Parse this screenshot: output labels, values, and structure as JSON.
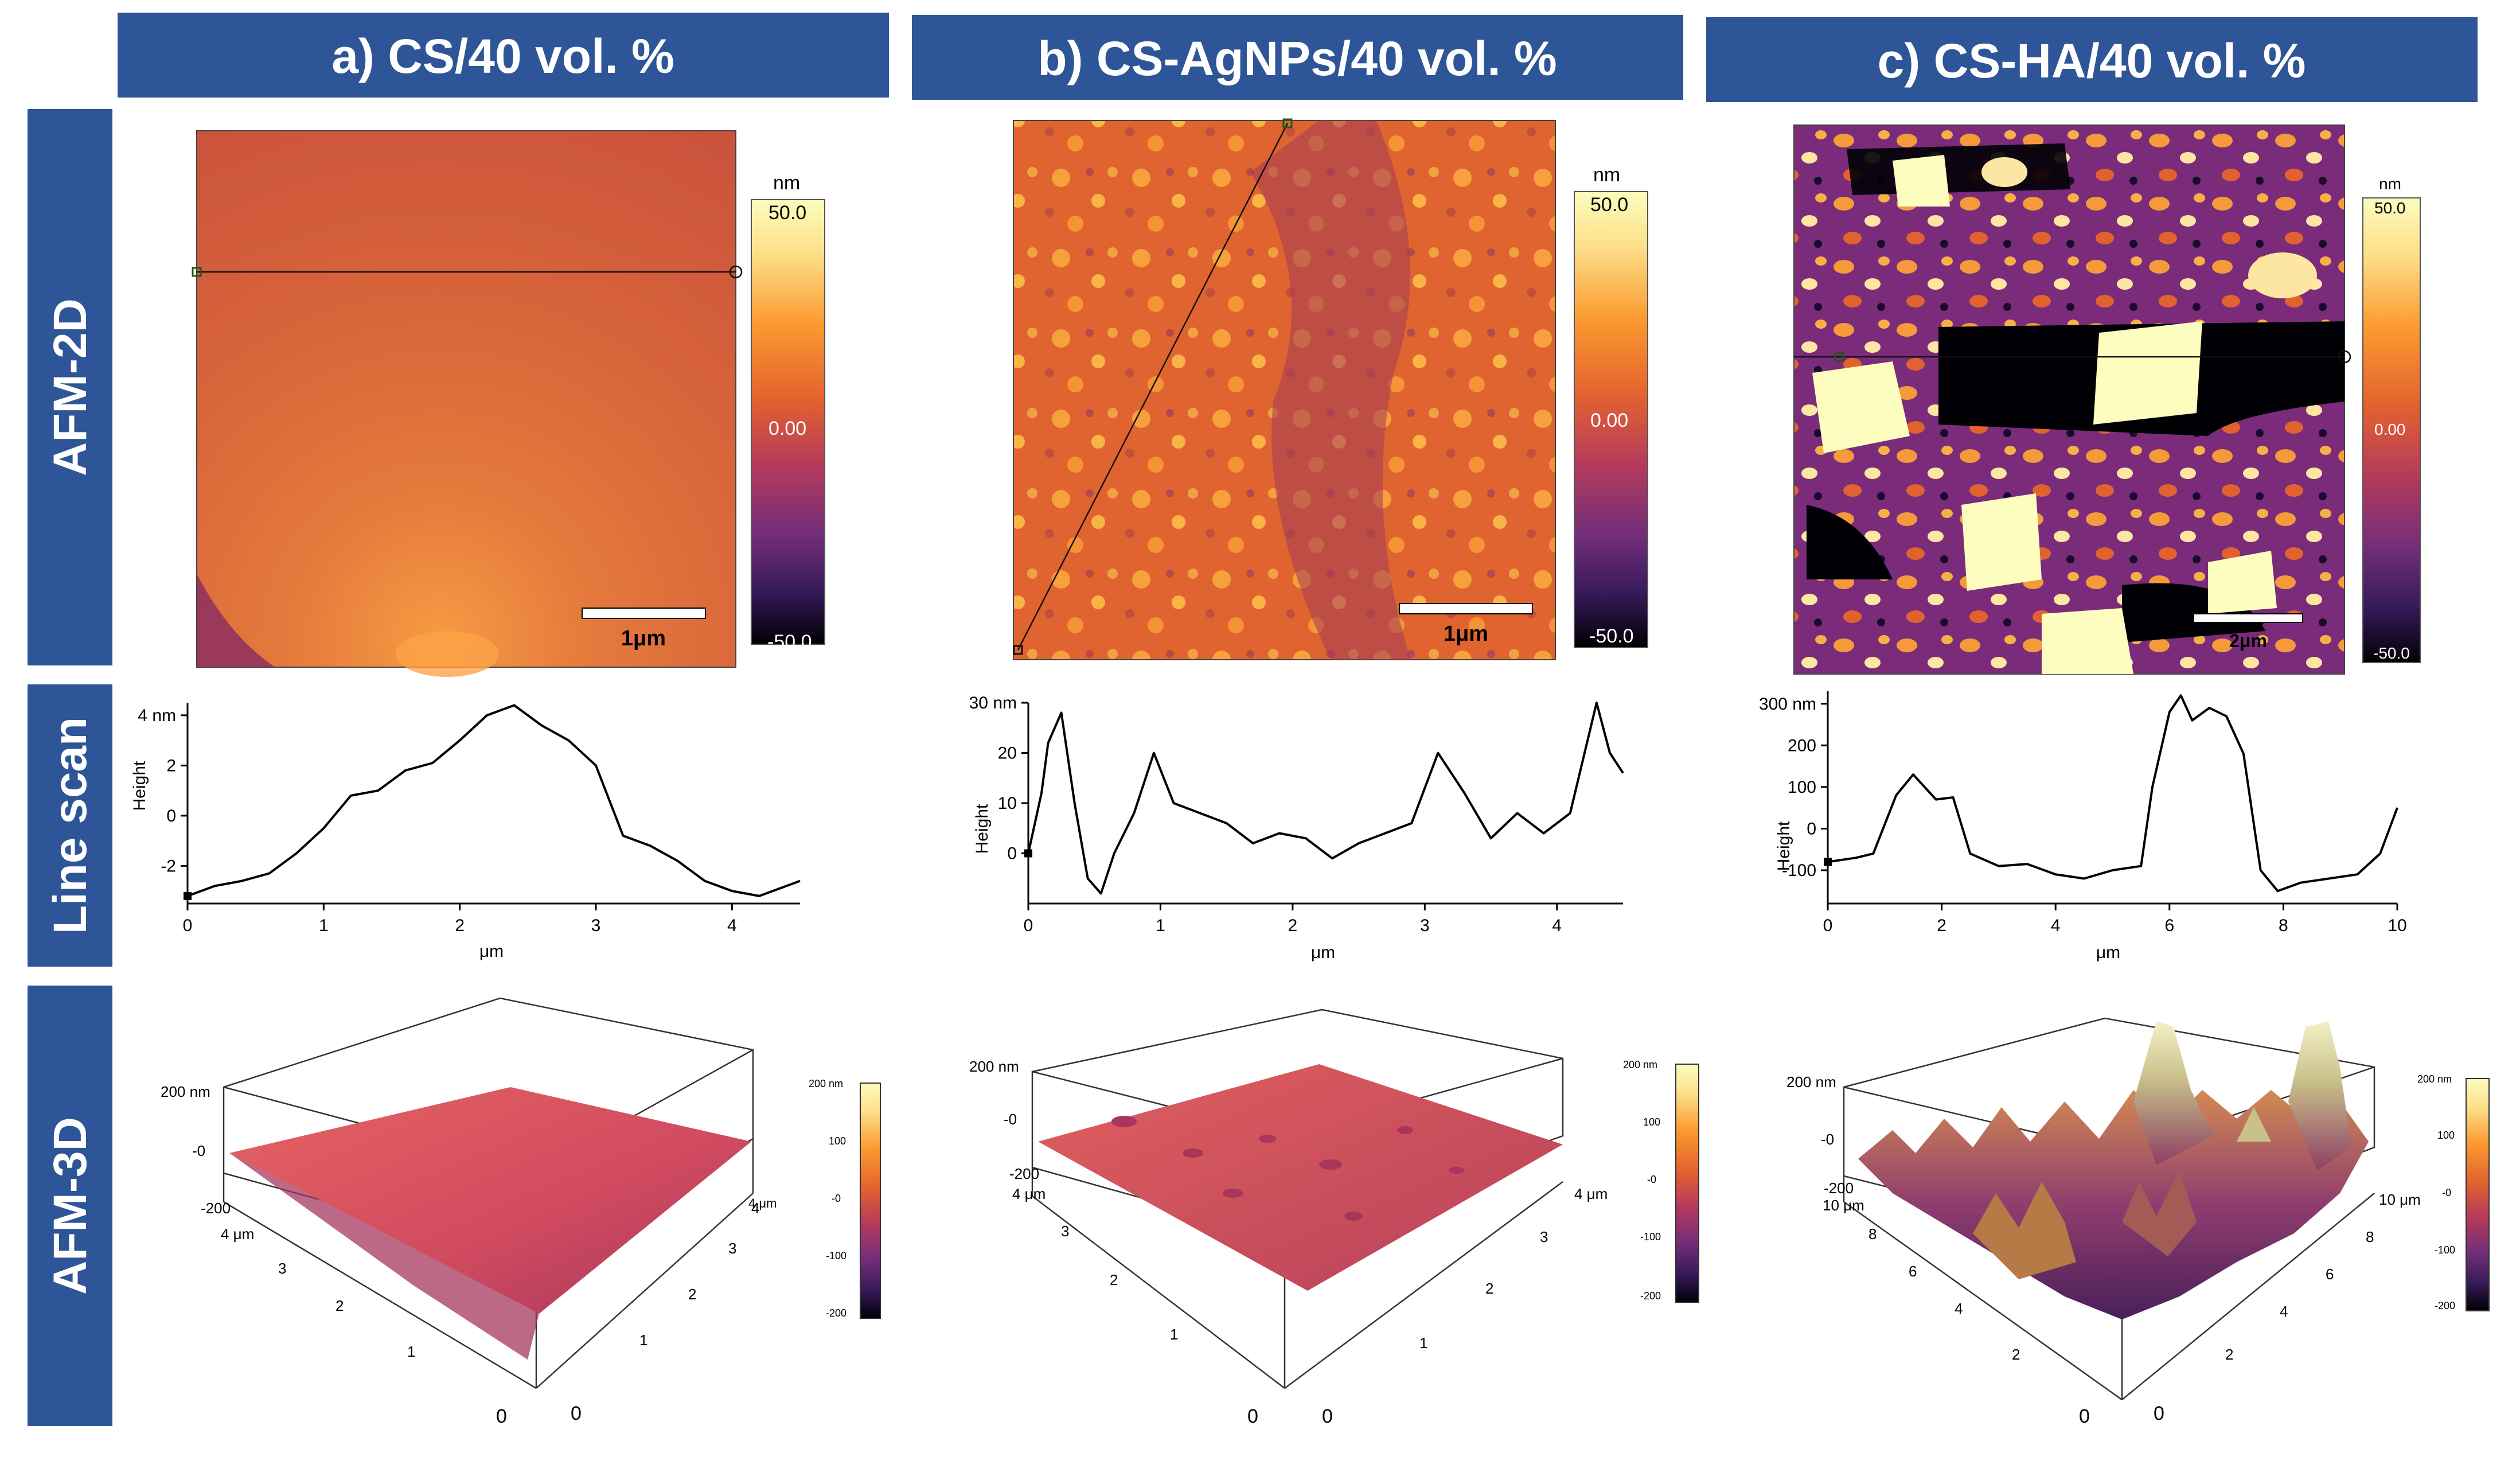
{
  "columns": [
    {
      "title": "a) CS/40 vol. %",
      "scale_bar": "1μm",
      "colorbar": {
        "unit": "nm",
        "max": "50.0",
        "mid": "0.00",
        "min": "-50.0"
      },
      "line_scan": {
        "ylabel": "Height",
        "xlabel": "μm",
        "y_ticks": [
          "4 nm",
          "2",
          "0",
          "-2"
        ],
        "x_ticks": [
          "0",
          "1",
          "2",
          "3",
          "4"
        ]
      },
      "surface_3d": {
        "z_ticks": [
          "200 nm",
          "-0",
          "-200"
        ],
        "left_axis": [
          "4 μm",
          "3",
          "2",
          "1",
          "0"
        ],
        "right_axis": [
          "0",
          "1",
          "2",
          "3",
          "4",
          "4 μm"
        ],
        "colorbar": [
          "200 nm",
          "100",
          "-0",
          "-100",
          "-200"
        ]
      }
    },
    {
      "title": "b) CS-AgNPs/40 vol. %",
      "scale_bar": "1μm",
      "colorbar": {
        "unit": "nm",
        "max": "50.0",
        "mid": "0.00",
        "min": "-50.0"
      },
      "line_scan": {
        "ylabel": "Height",
        "xlabel": "μm",
        "y_ticks": [
          "30 nm",
          "20",
          "10",
          "0"
        ],
        "x_ticks": [
          "0",
          "1",
          "2",
          "3",
          "4"
        ]
      },
      "surface_3d": {
        "z_ticks": [
          "200 nm",
          "-0",
          "-200"
        ],
        "left_axis": [
          "4 μm",
          "3",
          "2",
          "1",
          "0"
        ],
        "right_axis": [
          "0",
          "1",
          "2",
          "3",
          "4 μm"
        ],
        "colorbar": [
          "200 nm",
          "100",
          "-0",
          "-100",
          "-200"
        ]
      }
    },
    {
      "title": "c) CS-HA/40 vol. %",
      "scale_bar": "2μm",
      "colorbar": {
        "unit": "nm",
        "max": "50.0",
        "mid": "0.00",
        "min": "-50.0"
      },
      "line_scan": {
        "ylabel": "Height",
        "xlabel": "μm",
        "y_ticks": [
          "300 nm",
          "200",
          "100",
          "0",
          "-100"
        ],
        "x_ticks": [
          "0",
          "2",
          "4",
          "6",
          "8",
          "10"
        ]
      },
      "surface_3d": {
        "z_ticks": [
          "200 nm",
          "-0",
          "-200"
        ],
        "left_axis": [
          "10 μm",
          "8",
          "6",
          "4",
          "2",
          "0"
        ],
        "right_axis": [
          "0",
          "2",
          "4",
          "6",
          "8",
          "10 μm"
        ],
        "colorbar": [
          "200 nm",
          "100",
          "-0",
          "-100",
          "-200"
        ]
      }
    }
  ],
  "rows": [
    "AFM-2D",
    "Line scan",
    "AFM-3D"
  ],
  "colors": {
    "header": "#2e5597",
    "text": "#ffffff"
  },
  "chart_data": [
    {
      "type": "line",
      "title": "a) CS/40 vol. % line scan",
      "xlabel": "μm",
      "ylabel": "Height (nm)",
      "xlim": [
        0,
        4.5
      ],
      "ylim": [
        -3.5,
        4.5
      ],
      "x": [
        0,
        0.2,
        0.4,
        0.6,
        0.8,
        1.0,
        1.2,
        1.4,
        1.6,
        1.8,
        2.0,
        2.2,
        2.4,
        2.6,
        2.8,
        3.0,
        3.2,
        3.4,
        3.6,
        3.8,
        4.0,
        4.2,
        4.5
      ],
      "y": [
        -3.2,
        -2.8,
        -2.6,
        -2.3,
        -1.5,
        -0.5,
        0.8,
        1.0,
        1.8,
        2.1,
        3.0,
        4.0,
        4.4,
        3.6,
        3.0,
        2.0,
        -0.8,
        -1.2,
        -1.8,
        -2.6,
        -3.0,
        -3.2,
        -2.6
      ]
    },
    {
      "type": "line",
      "title": "b) CS-AgNPs/40 vol. % line scan",
      "xlabel": "μm",
      "ylabel": "Height (nm)",
      "xlim": [
        0,
        4.5
      ],
      "ylim": [
        -10,
        30
      ],
      "x": [
        0,
        0.1,
        0.15,
        0.25,
        0.35,
        0.45,
        0.55,
        0.65,
        0.8,
        0.95,
        1.1,
        1.3,
        1.5,
        1.7,
        1.9,
        2.1,
        2.3,
        2.5,
        2.7,
        2.9,
        3.1,
        3.3,
        3.5,
        3.7,
        3.9,
        4.1,
        4.3,
        4.4,
        4.5
      ],
      "y": [
        0,
        12,
        22,
        28,
        10,
        -5,
        -8,
        0,
        8,
        20,
        10,
        8,
        6,
        2,
        4,
        3,
        -1,
        2,
        4,
        6,
        20,
        12,
        3,
        8,
        4,
        8,
        30,
        20,
        16
      ]
    },
    {
      "type": "line",
      "title": "c) CS-HA/40 vol. % line scan",
      "xlabel": "μm",
      "ylabel": "Height (nm)",
      "xlim": [
        0,
        10
      ],
      "ylim": [
        -180,
        330
      ],
      "x": [
        0,
        0.5,
        0.8,
        1.2,
        1.5,
        1.9,
        2.2,
        2.5,
        3.0,
        3.5,
        4.0,
        4.5,
        5.0,
        5.5,
        5.7,
        6.0,
        6.2,
        6.4,
        6.7,
        7.0,
        7.3,
        7.6,
        7.9,
        8.3,
        8.8,
        9.3,
        9.7,
        10.0
      ],
      "y": [
        -80,
        -70,
        -60,
        80,
        130,
        70,
        75,
        -60,
        -90,
        -85,
        -110,
        -120,
        -100,
        -90,
        100,
        280,
        320,
        260,
        290,
        270,
        180,
        -100,
        -150,
        -130,
        -120,
        -110,
        -60,
        50
      ]
    }
  ]
}
